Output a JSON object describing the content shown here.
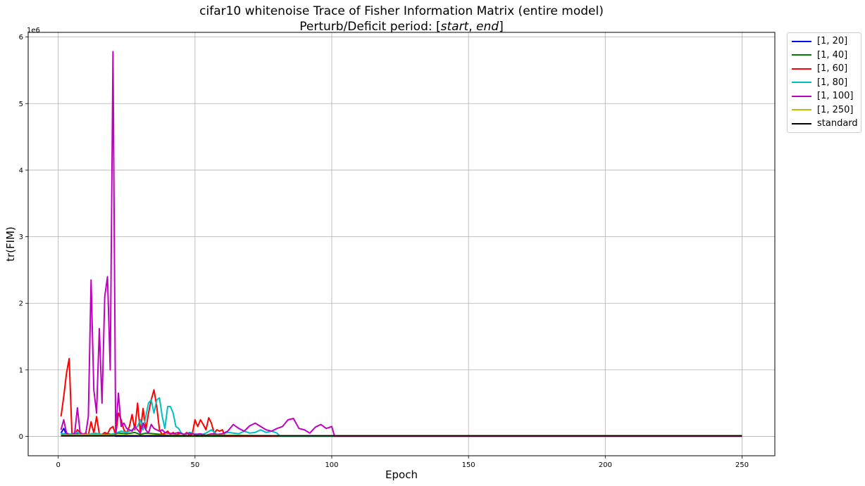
{
  "chart_data": {
    "type": "line",
    "title": "cifar10 whitenoise Trace of Fisher Information Matrix (entire model)",
    "subtitle_prefix": "Perturb/Deficit period: [",
    "subtitle_start": "start",
    "subtitle_sep": ", ",
    "subtitle_end": "end",
    "subtitle_suffix": "]",
    "xlabel": "Epoch",
    "ylabel": "tr(FIM)",
    "y_offset_label": "1e6",
    "xlim": [
      -11,
      262
    ],
    "ylim": [
      -0.29,
      6.07
    ],
    "x_ticks": [
      0,
      50,
      100,
      150,
      200,
      250
    ],
    "x_tick_labels": [
      "0",
      "50",
      "100",
      "150",
      "200",
      "250"
    ],
    "y_ticks": [
      0,
      1,
      2,
      3,
      4,
      5,
      6
    ],
    "y_tick_labels": [
      "0",
      "1",
      "2",
      "3",
      "4",
      "5",
      "6"
    ],
    "grid": true,
    "legend_position": "outside-top-right",
    "legend_labels": [
      "[1, 20]",
      "[1, 40]",
      "[1, 60]",
      "[1, 80]",
      "[1, 100]",
      "[1, 250]",
      "standard"
    ],
    "series": [
      {
        "name": "[1, 20]",
        "color": "#0000ff",
        "x": [
          1,
          2,
          3,
          4,
          5,
          6,
          7,
          8,
          9,
          10,
          11,
          12,
          13,
          14,
          15,
          16,
          17,
          18,
          19,
          20,
          21,
          30,
          60,
          100,
          150,
          200,
          250
        ],
        "y": [
          0.05,
          0.12,
          0.03,
          0.02,
          0.01,
          0.02,
          0.06,
          0.03,
          0.01,
          0.02,
          0.01,
          0.03,
          0.02,
          0.01,
          0.02,
          0.01,
          0.03,
          0.02,
          0.01,
          0.02,
          0.005,
          0.005,
          0.005,
          0.005,
          0.005,
          0.005,
          0.005
        ]
      },
      {
        "name": "[1, 40]",
        "color": "#008000",
        "x": [
          1,
          3,
          5,
          8,
          10,
          13,
          15,
          18,
          20,
          22,
          25,
          28,
          30,
          32,
          35,
          38,
          40,
          41,
          60,
          100,
          150,
          200,
          250
        ],
        "y": [
          0.03,
          0.05,
          0.02,
          0.04,
          0.02,
          0.03,
          0.02,
          0.04,
          0.03,
          0.05,
          0.04,
          0.06,
          0.03,
          0.05,
          0.04,
          0.03,
          0.02,
          0.005,
          0.005,
          0.005,
          0.005,
          0.005,
          0.005
        ]
      },
      {
        "name": "[1, 60]",
        "color": "#ff0000",
        "x": [
          1,
          2,
          3,
          4,
          5,
          6,
          7,
          8,
          9,
          10,
          11,
          12,
          13,
          14,
          15,
          16,
          17,
          18,
          19,
          20,
          21,
          22,
          23,
          24,
          25,
          26,
          27,
          28,
          29,
          30,
          31,
          32,
          33,
          34,
          35,
          36,
          37,
          38,
          39,
          40,
          41,
          42,
          43,
          44,
          45,
          46,
          47,
          48,
          49,
          50,
          51,
          52,
          53,
          54,
          55,
          56,
          57,
          58,
          59,
          60,
          61,
          100,
          150,
          200,
          250
        ],
        "y": [
          0.3,
          0.6,
          0.95,
          1.17,
          0.05,
          0.02,
          0.1,
          0.06,
          0.03,
          0.05,
          0.02,
          0.22,
          0.05,
          0.3,
          0.04,
          0.03,
          0.06,
          0.04,
          0.12,
          0.15,
          0.02,
          0.35,
          0.25,
          0.1,
          0.05,
          0.15,
          0.33,
          0.1,
          0.5,
          0.06,
          0.42,
          0.1,
          0.35,
          0.55,
          0.7,
          0.45,
          0.1,
          0.03,
          0.05,
          0.08,
          0.03,
          0.06,
          0.02,
          0.04,
          0.05,
          0.03,
          0.06,
          0.02,
          0.04,
          0.25,
          0.15,
          0.25,
          0.18,
          0.1,
          0.28,
          0.2,
          0.05,
          0.1,
          0.08,
          0.1,
          0.005,
          0.005,
          0.005,
          0.005,
          0.005
        ]
      },
      {
        "name": "[1, 80]",
        "color": "#00bfbf",
        "x": [
          1,
          3,
          5,
          7,
          9,
          11,
          13,
          15,
          17,
          19,
          21,
          23,
          25,
          27,
          29,
          30,
          31,
          32,
          33,
          34,
          35,
          36,
          37,
          38,
          39,
          40,
          41,
          42,
          43,
          44,
          45,
          46,
          48,
          50,
          52,
          54,
          56,
          58,
          60,
          62,
          64,
          66,
          68,
          70,
          72,
          74,
          76,
          78,
          80,
          81,
          100,
          150,
          200,
          250
        ],
        "y": [
          0.05,
          0.03,
          0.04,
          0.06,
          0.02,
          0.03,
          0.05,
          0.04,
          0.02,
          0.03,
          0.05,
          0.08,
          0.06,
          0.1,
          0.15,
          0.25,
          0.1,
          0.3,
          0.5,
          0.55,
          0.35,
          0.55,
          0.58,
          0.3,
          0.12,
          0.45,
          0.45,
          0.35,
          0.15,
          0.12,
          0.05,
          0.03,
          0.06,
          0.04,
          0.02,
          0.05,
          0.1,
          0.03,
          0.04,
          0.06,
          0.05,
          0.04,
          0.08,
          0.05,
          0.06,
          0.1,
          0.06,
          0.08,
          0.05,
          0.005,
          0.005,
          0.005,
          0.005,
          0.005
        ]
      },
      {
        "name": "[1, 100]",
        "color": "#bf00bf",
        "x": [
          1,
          2,
          3,
          4,
          5,
          6,
          7,
          8,
          9,
          10,
          11,
          12,
          13,
          14,
          15,
          16,
          17,
          18,
          19,
          20,
          21,
          22,
          23,
          24,
          25,
          26,
          27,
          28,
          29,
          30,
          31,
          32,
          33,
          34,
          35,
          36,
          37,
          38,
          39,
          40,
          42,
          44,
          46,
          48,
          50,
          52,
          54,
          56,
          58,
          60,
          62,
          64,
          66,
          68,
          70,
          72,
          74,
          76,
          78,
          80,
          82,
          84,
          86,
          88,
          90,
          92,
          94,
          96,
          98,
          100,
          101,
          150,
          200,
          250
        ],
        "y": [
          0.1,
          0.25,
          0.05,
          0.02,
          0.03,
          0.05,
          0.43,
          0.05,
          0.04,
          0.02,
          0.3,
          2.35,
          0.7,
          0.35,
          1.62,
          0.5,
          2.1,
          2.4,
          1.0,
          5.78,
          0.05,
          0.65,
          0.15,
          0.2,
          0.12,
          0.1,
          0.08,
          0.15,
          0.1,
          0.05,
          0.2,
          0.1,
          0.05,
          0.18,
          0.12,
          0.1,
          0.08,
          0.1,
          0.06,
          0.05,
          0.04,
          0.06,
          0.03,
          0.05,
          0.03,
          0.04,
          0.02,
          0.04,
          0.03,
          0.04,
          0.08,
          0.18,
          0.12,
          0.08,
          0.16,
          0.2,
          0.15,
          0.1,
          0.08,
          0.12,
          0.15,
          0.25,
          0.27,
          0.12,
          0.1,
          0.05,
          0.14,
          0.18,
          0.12,
          0.15,
          0.005,
          0.005,
          0.005,
          0.005
        ]
      },
      {
        "name": "[1, 250]",
        "color": "#bfbf00",
        "x": [
          1,
          10,
          20,
          30,
          40,
          50,
          60,
          80,
          100,
          120,
          150,
          180,
          200,
          220,
          250
        ],
        "y": [
          0.02,
          0.03,
          0.02,
          0.01,
          0.02,
          0.01,
          0.02,
          0.01,
          0.01,
          0.01,
          0.01,
          0.01,
          0.01,
          0.01,
          0.01
        ]
      },
      {
        "name": "standard",
        "color": "#000000",
        "x": [
          1,
          50,
          100,
          150,
          200,
          250
        ],
        "y": [
          0.01,
          0.01,
          0.01,
          0.01,
          0.01,
          0.01
        ]
      }
    ]
  }
}
